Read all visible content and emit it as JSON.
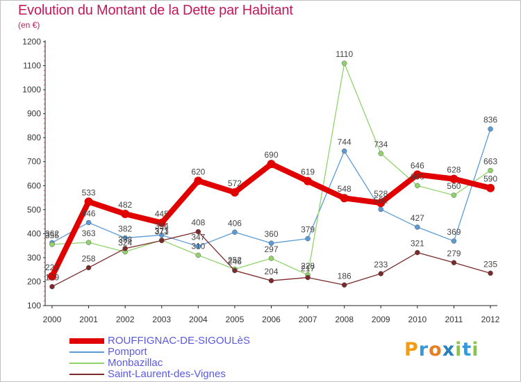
{
  "header": {
    "title": "Evolution du Montant de la Dette par Habitant",
    "subtitle": "(en €)"
  },
  "brand": {
    "letters": [
      "P",
      "r",
      "o",
      "x",
      "i",
      "t",
      "i"
    ],
    "colors": [
      "#f39c12",
      "#3498db",
      "#e67e22",
      "#2980b9",
      "#8bc34a",
      "#3498db",
      "#8bc34a"
    ]
  },
  "chart_data": {
    "type": "line",
    "title": "Evolution du Montant de la Dette par Habitant",
    "subtitle": "(en €)",
    "x": [
      "2000",
      "2001",
      "2002",
      "2003",
      "2004",
      "2005",
      "2006",
      "2007",
      "2008",
      "2009",
      "2010",
      "2011",
      "2012"
    ],
    "y_ticks": [
      100,
      200,
      300,
      400,
      500,
      600,
      700,
      800,
      900,
      1000,
      1100,
      1200
    ],
    "ylim": [
      100,
      1200
    ],
    "grid": false,
    "legend_position": "bottom-left",
    "series": [
      {
        "name": "ROUFFIGNAC-DE-SIGOULèS",
        "color": "#e00000",
        "values": [
          222,
          533,
          482,
          445,
          620,
          572,
          690,
          619,
          548,
          528,
          646,
          628,
          590
        ],
        "labels": [
          "222",
          "533",
          "482",
          "445",
          "620",
          "572",
          "690",
          "619",
          "548",
          "528",
          "646",
          "628",
          "590"
        ]
      },
      {
        "name": "Pomport",
        "color": "#5b9bd5",
        "values": [
          362,
          446,
          382,
          394,
          347,
          406,
          360,
          379,
          744,
          501,
          427,
          369,
          836
        ],
        "labels": [
          "362",
          "446",
          "382",
          "394",
          "347",
          "406",
          "360",
          "379",
          "744",
          "501",
          "427",
          "369",
          "836"
        ]
      },
      {
        "name": "Monbazillac",
        "color": "#8fd36a",
        "values": [
          355,
          363,
          324,
          373,
          310,
          252,
          297,
          228,
          1110,
          734,
          600,
          560,
          663
        ],
        "labels": [
          "355",
          "363",
          "324",
          "373",
          "310",
          "252",
          "297",
          "228",
          "1110",
          "734",
          "600",
          "560",
          "663"
        ]
      },
      {
        "name": "Saint-Laurent-des-Vignes",
        "color": "#7a2a2a",
        "values": [
          179,
          258,
          338,
          371,
          408,
          246,
          204,
          217,
          186,
          233,
          321,
          279,
          235
        ],
        "labels": [
          "179",
          "258",
          "338",
          "371",
          "408",
          "246",
          "204",
          "217",
          "186",
          "233",
          "321",
          "279",
          "235"
        ]
      }
    ]
  }
}
